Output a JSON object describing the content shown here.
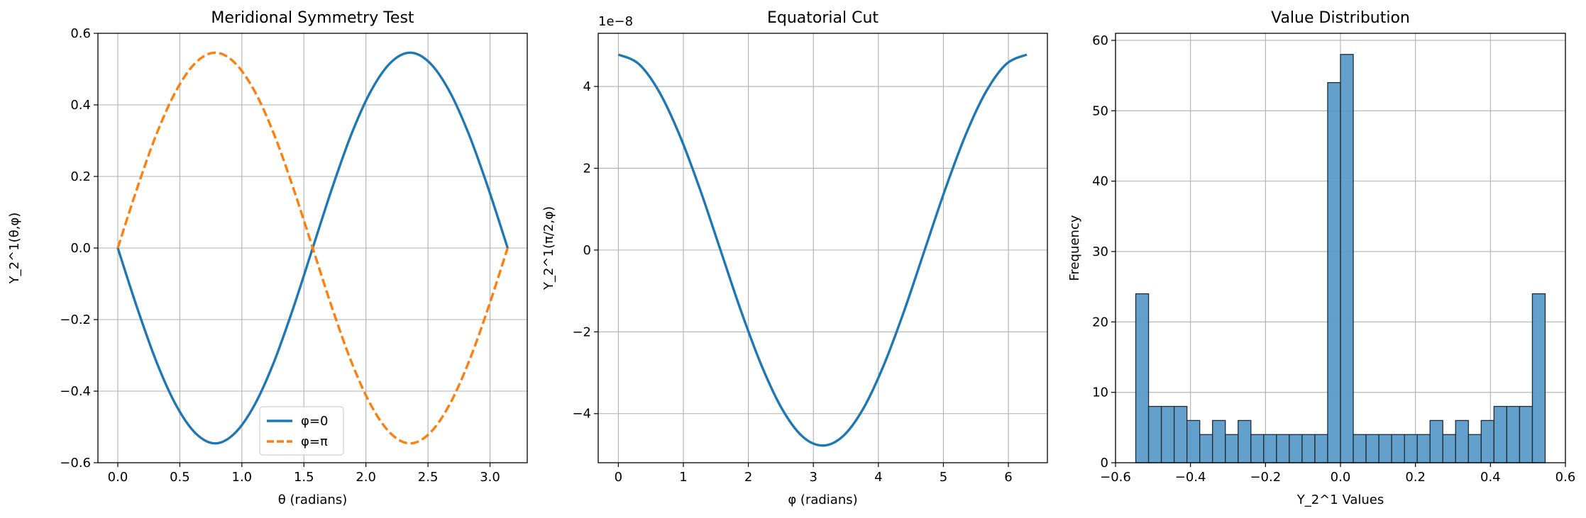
{
  "chart_data": [
    {
      "type": "line",
      "title": "Meridional Symmetry Test",
      "xlabel": "θ (radians)",
      "ylabel": "Y_2^1(θ,φ)",
      "xlim": [
        -0.16,
        3.3
      ],
      "ylim": [
        -0.6,
        0.6
      ],
      "xticks": [
        0.0,
        0.5,
        1.0,
        1.5,
        2.0,
        2.5,
        3.0
      ],
      "xtick_labels": [
        "0.0",
        "0.5",
        "1.0",
        "1.5",
        "2.0",
        "2.5",
        "3.0"
      ],
      "yticks": [
        -0.6,
        -0.4,
        -0.2,
        0.0,
        0.2,
        0.4,
        0.6
      ],
      "ytick_labels": [
        "−0.6",
        "−0.4",
        "−0.2",
        "0.0",
        "0.2",
        "0.4",
        "0.6"
      ],
      "grid": true,
      "legend": "lower center",
      "series": [
        {
          "name": "φ=0",
          "color": "#1f77b4",
          "style": "solid",
          "x": [
            0.0,
            0.157,
            0.314,
            0.471,
            0.628,
            0.785,
            0.942,
            1.1,
            1.257,
            1.414,
            1.571,
            1.728,
            1.885,
            2.042,
            2.199,
            2.356,
            2.513,
            2.67,
            2.827,
            2.985,
            3.142
          ],
          "y": [
            0.0,
            -0.168,
            -0.32,
            -0.44,
            -0.518,
            -0.546,
            -0.518,
            -0.44,
            -0.32,
            -0.168,
            0.0,
            0.168,
            0.32,
            0.44,
            0.518,
            0.546,
            0.518,
            0.44,
            0.32,
            0.168,
            0.0
          ]
        },
        {
          "name": "φ=π",
          "color": "#ff7f0e",
          "style": "dashed",
          "x": [
            0.0,
            0.157,
            0.314,
            0.471,
            0.628,
            0.785,
            0.942,
            1.1,
            1.257,
            1.414,
            1.571,
            1.728,
            1.885,
            2.042,
            2.199,
            2.356,
            2.513,
            2.67,
            2.827,
            2.985,
            3.142
          ],
          "y": [
            0.0,
            0.168,
            0.32,
            0.44,
            0.518,
            0.546,
            0.518,
            0.44,
            0.32,
            0.168,
            0.0,
            -0.168,
            -0.32,
            -0.44,
            -0.518,
            -0.546,
            -0.518,
            -0.44,
            -0.32,
            -0.168,
            0.0
          ]
        }
      ]
    },
    {
      "type": "line",
      "title": "Equatorial Cut",
      "xlabel": "φ (radians)",
      "ylabel": "Y_2^1(π/2,φ)",
      "y_offset_label": "1e−8",
      "xlim": [
        -0.31,
        6.6
      ],
      "ylim": [
        -5.2,
        5.3
      ],
      "xticks": [
        0,
        1,
        2,
        3,
        4,
        5,
        6
      ],
      "xtick_labels": [
        "0",
        "1",
        "2",
        "3",
        "4",
        "5",
        "6"
      ],
      "yticks": [
        -4,
        -2,
        0,
        2,
        4
      ],
      "ytick_labels": [
        "−4",
        "−2",
        "0",
        "2",
        "4"
      ],
      "grid": true,
      "series": [
        {
          "color": "#1f77b4",
          "x": [
            0.0,
            0.314,
            0.628,
            0.942,
            1.257,
            1.571,
            1.885,
            2.199,
            2.513,
            2.827,
            3.142,
            3.456,
            3.77,
            4.084,
            4.398,
            4.712,
            5.027,
            5.341,
            5.655,
            5.969,
            6.283
          ],
          "y": [
            4.78,
            4.55,
            3.87,
            2.81,
            1.48,
            0.0,
            -1.48,
            -2.81,
            -3.87,
            -4.55,
            -4.78,
            -4.55,
            -3.87,
            -2.81,
            -1.48,
            0.0,
            1.48,
            2.81,
            3.87,
            4.55,
            4.78
          ]
        }
      ]
    },
    {
      "type": "bar",
      "title": "Value Distribution",
      "xlabel": "Y_2^1 Values",
      "ylabel": "Frequency",
      "xlim": [
        -0.6,
        0.6
      ],
      "ylim": [
        0,
        61
      ],
      "xticks": [
        -0.6,
        -0.4,
        -0.2,
        0.0,
        0.2,
        0.4,
        0.6
      ],
      "xtick_labels": [
        "−0.6",
        "−0.4",
        "−0.2",
        "0.0",
        "0.2",
        "0.4",
        "0.6"
      ],
      "yticks": [
        0,
        10,
        20,
        30,
        40,
        50,
        60
      ],
      "ytick_labels": [
        "0",
        "10",
        "20",
        "30",
        "40",
        "50",
        "60"
      ],
      "grid": true,
      "bar_color": "#5b9bc9",
      "bin_range": [
        -0.546,
        0.546
      ],
      "counts": [
        24,
        8,
        8,
        8,
        6,
        4,
        6,
        4,
        6,
        4,
        4,
        4,
        4,
        4,
        4,
        54,
        58,
        4,
        4,
        4,
        4,
        4,
        4,
        6,
        4,
        6,
        4,
        6,
        8,
        8,
        8,
        24
      ]
    }
  ]
}
